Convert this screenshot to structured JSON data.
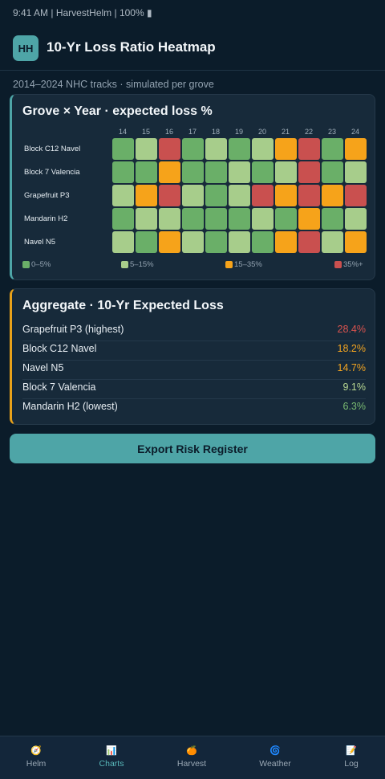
{
  "status_bar": {
    "text": "9:41 AM | HarvestHelm | 100% ▮"
  },
  "header": {
    "logo": "HH",
    "title": "10-Yr Loss Ratio Heatmap"
  },
  "subtitle": "2014–2024 NHC tracks · simulated per grove",
  "heatmap_card": {
    "title": "Grove × Year · expected loss %",
    "colors": {
      "0-5%": "#6aaf68",
      "5-15%": "#a7cd8b",
      "15-35%": "#f6a31a",
      "35%+": "#c9504f"
    },
    "legend": [
      {
        "label": "0–5%",
        "color": "#6aaf68"
      },
      {
        "label": "5–15%",
        "color": "#a7cd8b"
      },
      {
        "label": "15–35%",
        "color": "#f6a31a"
      },
      {
        "label": "35%+",
        "color": "#c9504f"
      }
    ]
  },
  "chart_data": {
    "type": "heatmap",
    "title": "Grove × Year · expected loss %",
    "x": [
      "14",
      "15",
      "16",
      "17",
      "18",
      "19",
      "20",
      "21",
      "22",
      "23",
      "24"
    ],
    "y": [
      "Block C12 Navel",
      "Block 7 Valencia",
      "Grapefruit P3",
      "Mandarin H2",
      "Navel N5"
    ],
    "bins": [
      "0–5%",
      "5–15%",
      "15–35%",
      "35%+"
    ],
    "values": [
      [
        0,
        1,
        3,
        0,
        1,
        0,
        1,
        2,
        3,
        0,
        2
      ],
      [
        0,
        0,
        2,
        0,
        0,
        1,
        0,
        1,
        3,
        0,
        1
      ],
      [
        1,
        2,
        3,
        1,
        0,
        1,
        3,
        2,
        3,
        2,
        3
      ],
      [
        0,
        1,
        1,
        0,
        0,
        0,
        1,
        0,
        2,
        0,
        1
      ],
      [
        1,
        0,
        2,
        1,
        0,
        1,
        0,
        2,
        3,
        1,
        2
      ]
    ]
  },
  "aggregate": {
    "title": "Aggregate · 10-Yr Expected Loss",
    "rows": [
      {
        "name": "Grapefruit P3 (highest)",
        "value": "28.4%",
        "color": "#d9534f"
      },
      {
        "name": "Block C12 Navel",
        "value": "18.2%",
        "color": "#f0a321"
      },
      {
        "name": "Navel N5",
        "value": "14.7%",
        "color": "#f0a321"
      },
      {
        "name": "Block 7 Valencia",
        "value": "9.1%",
        "color": "#b8d892"
      },
      {
        "name": "Mandarin H2 (lowest)",
        "value": "6.3%",
        "color": "#79b971"
      }
    ]
  },
  "export_button": {
    "label": "Export Risk Register"
  },
  "tabs": [
    {
      "icon": "compass-icon",
      "glyph": "🧭",
      "label": "Helm",
      "active": false
    },
    {
      "icon": "chart-icon",
      "glyph": "📊",
      "label": "Charts",
      "active": true
    },
    {
      "icon": "fruit-icon",
      "glyph": "🍊",
      "label": "Harvest",
      "active": false
    },
    {
      "icon": "cyclone-icon",
      "glyph": "🌀",
      "label": "Weather",
      "active": false
    },
    {
      "icon": "memo-icon",
      "glyph": "📝",
      "label": "Log",
      "active": false
    }
  ]
}
